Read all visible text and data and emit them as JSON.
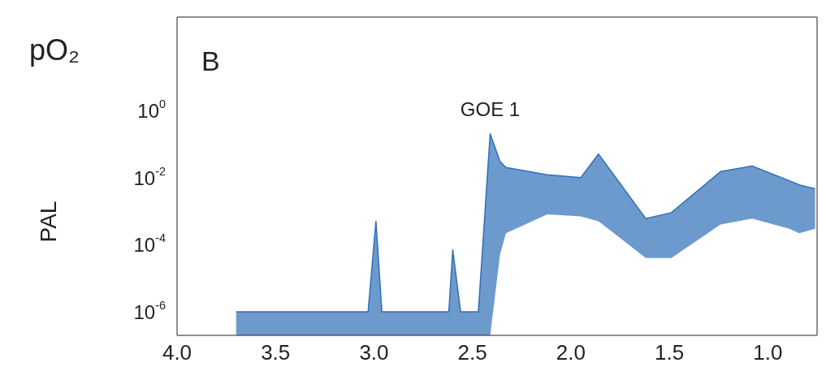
{
  "chart_data": {
    "type": "line",
    "title": "pO₂",
    "ylabel": "PAL",
    "annotations": [
      "B",
      {
        "text": "GOE 1",
        "x": 2.41,
        "y": 0.2
      }
    ],
    "x": [
      3.7,
      3.03,
      2.99,
      2.96,
      2.62,
      2.6,
      2.56,
      2.47,
      2.41,
      2.36,
      2.33,
      2.12,
      1.95,
      1.86,
      1.62,
      1.49,
      1.24,
      1.08,
      0.89,
      0.84,
      0.76
    ],
    "series": [
      {
        "color": "#2f6fb8",
        "values": [
          1e-06,
          1e-06,
          0.0005,
          1e-06,
          1e-06,
          7e-05,
          1e-06,
          1e-06,
          0.2,
          0.03,
          0.02,
          0.012,
          0.01,
          0.05,
          0.0006,
          0.0009,
          0.015,
          0.022,
          0.008,
          0.006,
          0.0046
        ],
        "upper": [
          1e-06,
          1e-06,
          0.0005,
          1e-06,
          1e-06,
          7e-05,
          1e-06,
          1e-06,
          0.2,
          0.03,
          0.02,
          0.012,
          0.01,
          0.05,
          0.0006,
          0.0009,
          0.015,
          0.022,
          0.008,
          0.006,
          0.0046
        ],
        "lower": [
          2e-07,
          2e-07,
          2e-07,
          2e-07,
          2e-07,
          2e-07,
          2e-07,
          2e-07,
          2e-07,
          5e-05,
          0.00022,
          0.0008,
          0.0007,
          0.0005,
          4e-05,
          4e-05,
          0.0004,
          0.0006,
          0.0003,
          0.00022,
          0.0003
        ]
      }
    ],
    "xlim": [
      4.0,
      0.75
    ],
    "xticks": [
      {
        "value": 4,
        "label": "4.0"
      },
      {
        "value": 3.5,
        "label": "3.5"
      },
      {
        "value": 3,
        "label": "3.0"
      },
      {
        "value": 2.5,
        "label": "2.5"
      },
      {
        "value": 2,
        "label": "2.0"
      },
      {
        "value": 1.5,
        "label": "1.5"
      },
      {
        "value": 1,
        "label": "1.0"
      }
    ],
    "ylim": [
      2e-07,
      600
    ],
    "yticks": [
      {
        "value": 1,
        "label": "10$^{0}$"
      },
      {
        "value": 0.01,
        "label": "10$^{-2}$"
      },
      {
        "value": 0.0001,
        "label": "10$^{-4}$"
      },
      {
        "value": 1e-06,
        "label": "10$^{-6}$"
      }
    ],
    "log": "y",
    "marker": "none"
  }
}
